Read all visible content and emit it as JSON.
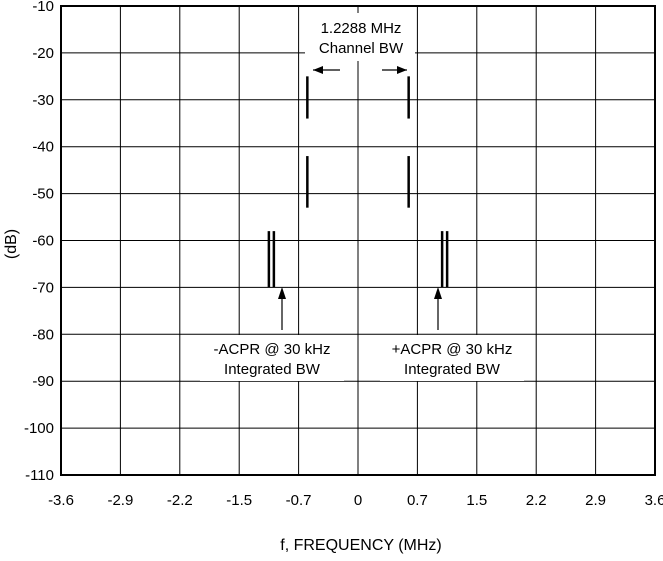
{
  "chart_data": {
    "type": "line",
    "title": "",
    "xlabel": "f, FREQUENCY (MHz)",
    "ylabel": "(dB)",
    "x_tick_labels": [
      "-3.6",
      "-2.9",
      "-2.2",
      "-1.5",
      "-0.7",
      "0",
      "0.7",
      "1.5",
      "2.2",
      "2.9",
      "3.6"
    ],
    "y_tick_labels": [
      "-10",
      "-20",
      "-30",
      "-40",
      "-50",
      "-60",
      "-70",
      "-80",
      "-90",
      "-100",
      "-110"
    ],
    "xlim": [
      -3.6,
      3.6
    ],
    "ylim": [
      -110,
      -10
    ],
    "grid": true,
    "markers": [
      {
        "name": "channel-edge-left",
        "x": -0.614,
        "y_segments": [
          [
            -25,
            -34
          ],
          [
            -42,
            -53
          ]
        ],
        "lines": 1
      },
      {
        "name": "channel-edge-right",
        "x": 0.614,
        "y_segments": [
          [
            -25,
            -34
          ],
          [
            -42,
            -53
          ]
        ],
        "lines": 1
      },
      {
        "name": "minus-acpr",
        "x": -1.05,
        "y_segments": [
          [
            -58,
            -70
          ]
        ],
        "lines": 2
      },
      {
        "name": "plus-acpr",
        "x": 1.05,
        "y_segments": [
          [
            -58,
            -70
          ]
        ],
        "lines": 2
      }
    ],
    "annotations": [
      {
        "id": "channel-bw",
        "lines": [
          "1.2288 MHz",
          "Channel BW"
        ]
      },
      {
        "id": "minus-acpr",
        "lines": [
          "-ACPR @ 30 kHz",
          "Integrated BW"
        ]
      },
      {
        "id": "plus-acpr",
        "lines": [
          "+ACPR @ 30 kHz",
          "Integrated BW"
        ]
      }
    ]
  }
}
